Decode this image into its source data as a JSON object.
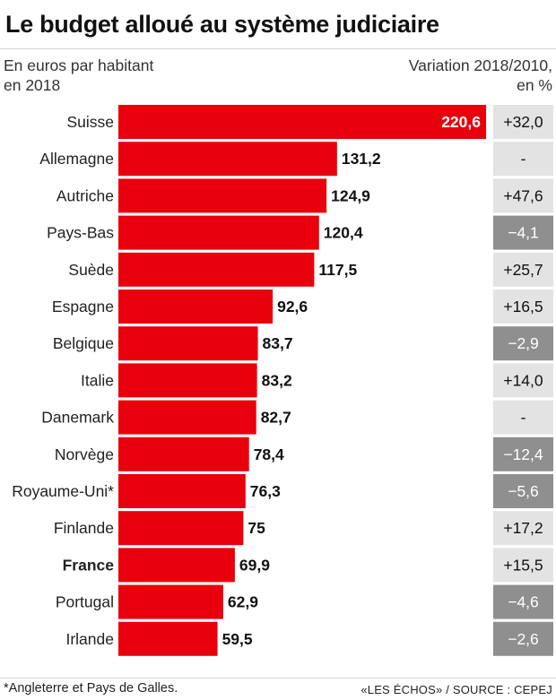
{
  "title": "Le budget alloué au système judiciaire",
  "subtitle_left_line1": "En euros par habitant",
  "subtitle_left_line2": "en 2018",
  "subtitle_right_line1": "Variation 2018/2010,",
  "subtitle_right_line2": "en %",
  "footnote": "*Angleterre et Pays de Galles.",
  "source": "«LES ÉCHOS» / SOURCE : CEPEJ",
  "colors": {
    "bar": "#e8000d",
    "variation_positive_bg": "#e3e3e3",
    "variation_negative_bg": "#8f8f8f",
    "variation_positive_text": "#111111",
    "variation_negative_text": "#ffffff"
  },
  "chart_data": {
    "type": "bar",
    "orientation": "horizontal",
    "title": "Le budget alloué au système judiciaire",
    "xlabel": "En euros par habitant en 2018",
    "ylabel": "",
    "xlim": [
      0,
      220.6
    ],
    "categories": [
      "Suisse",
      "Allemagne",
      "Autriche",
      "Pays-Bas",
      "Suède",
      "Espagne",
      "Belgique",
      "Italie",
      "Danemark",
      "Norvège",
      "Royaume-Uni*",
      "Finlande",
      "France",
      "Portugal",
      "Irlande"
    ],
    "values": [
      220.6,
      131.2,
      124.9,
      120.4,
      117.5,
      92.6,
      83.7,
      83.2,
      82.7,
      78.4,
      76.3,
      75,
      69.9,
      62.9,
      59.5
    ],
    "value_labels": [
      "220,6",
      "131,2",
      "124,9",
      "120,4",
      "117,5",
      "92,6",
      "83,7",
      "83,2",
      "82,7",
      "78,4",
      "76,3",
      "75",
      "69,9",
      "62,9",
      "59,5"
    ],
    "highlight": "France",
    "variation_title": "Variation 2018/2010, en %",
    "variation": [
      32.0,
      null,
      47.6,
      -4.1,
      25.7,
      16.5,
      -2.9,
      14.0,
      null,
      -12.4,
      -5.6,
      17.2,
      15.5,
      -4.6,
      -2.6
    ],
    "variation_labels": [
      "+32,0",
      "-",
      "+47,6",
      "−4,1",
      "+25,7",
      "+16,5",
      "−2,9",
      "+14,0",
      "-",
      "−12,4",
      "−5,6",
      "+17,2",
      "+15,5",
      "−4,6",
      "−2,6"
    ]
  }
}
